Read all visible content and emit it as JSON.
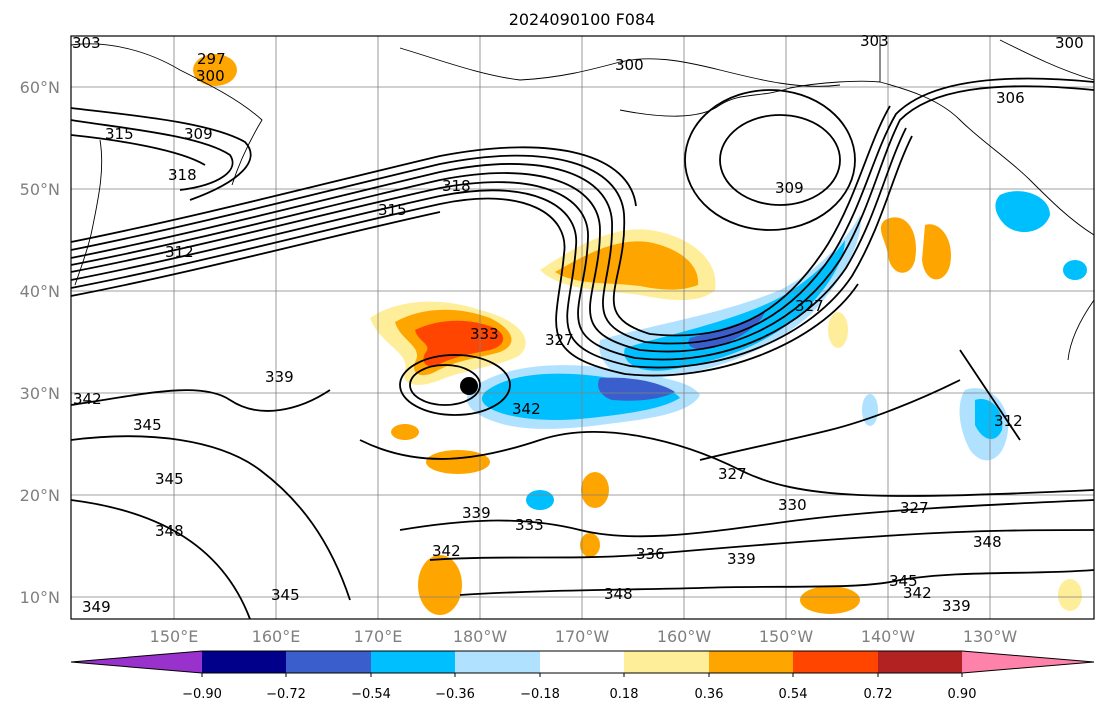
{
  "title": "2024090100 F084",
  "latitude_labels": [
    "60°N",
    "50°N",
    "40°N",
    "30°N",
    "20°N",
    "10°N"
  ],
  "longitude_labels": [
    "150°E",
    "160°E",
    "170°E",
    "180°W",
    "170°W",
    "160°W",
    "150°W",
    "140°W",
    "130°W"
  ],
  "colorbar": {
    "tick_labels": [
      "−0.90",
      "−0.72",
      "−0.54",
      "−0.36",
      "−0.18",
      "0.18",
      "0.36",
      "0.54",
      "0.72",
      "0.90"
    ],
    "colors": [
      "#9932cc",
      "#00008b",
      "#3a5fcd",
      "#00bfff",
      "#b0e2ff",
      "#ffffff",
      "#ffee99",
      "#ffa500",
      "#ff4500",
      "#b22222",
      "#ff82ab"
    ]
  },
  "contour_labels": [
    "303",
    "297",
    "300",
    "300",
    "303",
    "300",
    "306",
    "315",
    "309",
    "318",
    "318",
    "312",
    "315",
    "309",
    "339",
    "342",
    "345",
    "345",
    "348",
    "349",
    "345",
    "333",
    "327",
    "342",
    "327",
    "330",
    "327",
    "348",
    "336",
    "339",
    "348",
    "339",
    "342",
    "333",
    "342",
    "345",
    "339",
    "312",
    "327"
  ],
  "marker": "black-dot"
}
